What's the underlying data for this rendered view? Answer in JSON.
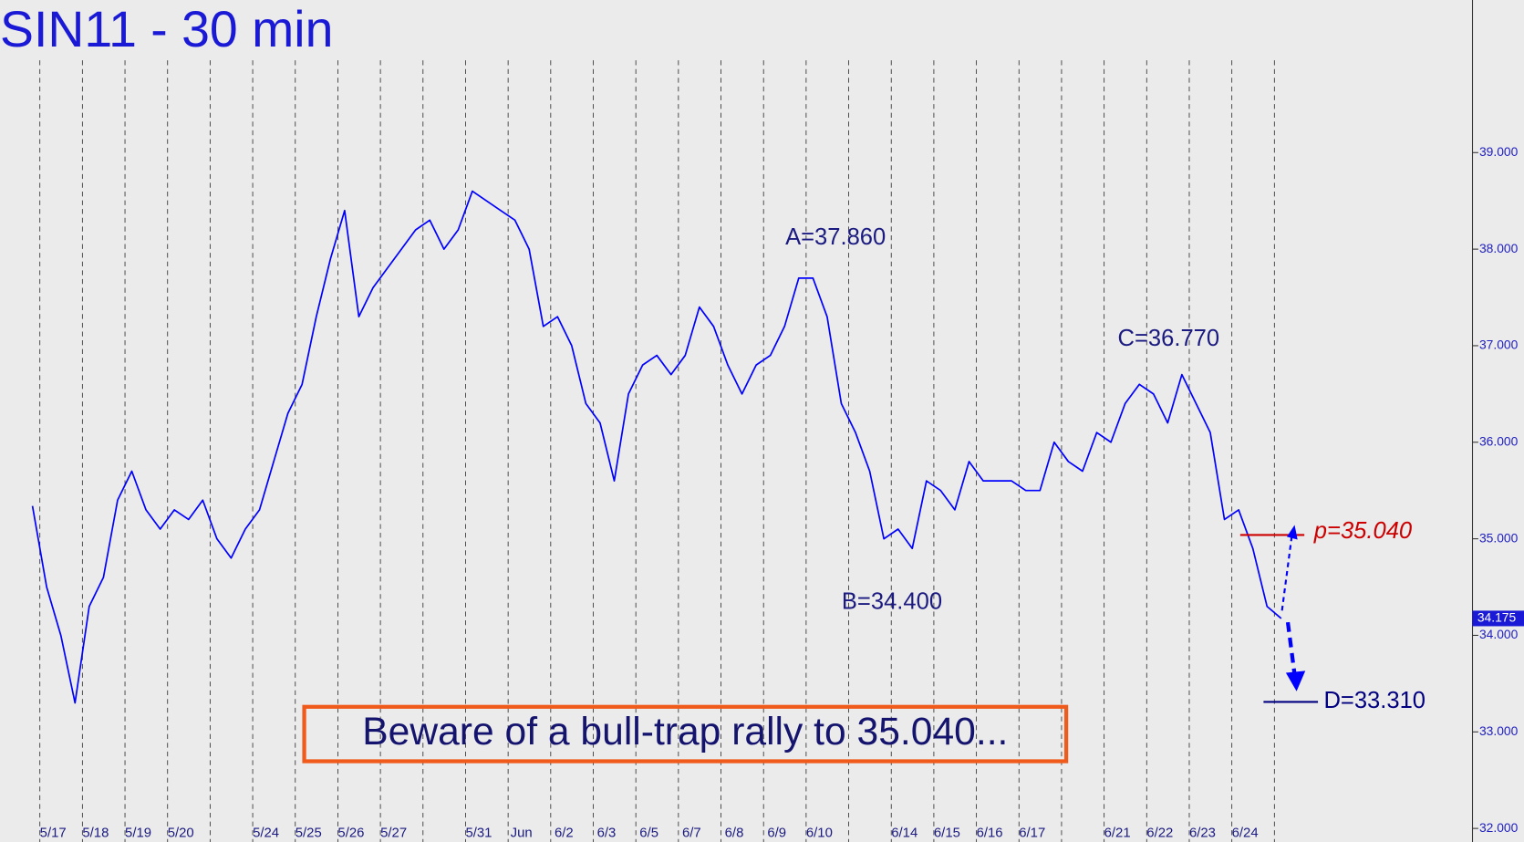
{
  "chart_data": {
    "type": "line",
    "title": "SIN11 - 30 min",
    "categories": [
      null,
      null,
      "5/17",
      null,
      null,
      "5/18",
      null,
      null,
      "5/19",
      null,
      null,
      "5/20",
      null,
      null,
      null,
      null,
      null,
      "5/24",
      null,
      null,
      "5/25",
      null,
      null,
      "5/26",
      null,
      null,
      "5/27",
      null,
      null,
      null,
      null,
      null,
      "5/31",
      null,
      null,
      "Jun",
      null,
      null,
      "6/2",
      null,
      null,
      "6/3",
      null,
      null,
      "6/5",
      null,
      null,
      "6/7",
      null,
      null,
      "6/8",
      null,
      null,
      "6/9",
      null,
      null,
      "6/10",
      null,
      null,
      null,
      null,
      null,
      "6/14",
      null,
      null,
      "6/15",
      null,
      null,
      "6/16",
      null,
      null,
      "6/17",
      null,
      null,
      null,
      null,
      null,
      "6/21",
      null,
      null,
      "6/22",
      null,
      null,
      "6/23",
      null,
      null,
      "6/24",
      null,
      null
    ],
    "series": [
      {
        "color": "#0000ff",
        "values": [
          35.34,
          34.5,
          34.0,
          33.3,
          34.3,
          34.6,
          35.4,
          35.7,
          35.3,
          35.1,
          35.3,
          35.2,
          35.4,
          35.0,
          34.8,
          35.1,
          35.3,
          35.8,
          36.3,
          36.6,
          37.3,
          37.9,
          38.4,
          37.3,
          37.6,
          37.8,
          38.0,
          38.2,
          38.3,
          38.0,
          38.2,
          38.6,
          38.5,
          38.4,
          38.3,
          38.0,
          37.2,
          37.3,
          37.0,
          36.4,
          36.2,
          35.6,
          36.5,
          36.8,
          36.9,
          36.7,
          36.9,
          37.4,
          37.2,
          36.8,
          36.5,
          36.8,
          36.9,
          37.2,
          37.7,
          37.7,
          37.3,
          36.4,
          36.1,
          35.7,
          35.0,
          35.1,
          34.9,
          35.6,
          35.5,
          35.3,
          35.8,
          35.6,
          35.6,
          35.6,
          35.5,
          35.5,
          36.0,
          35.8,
          35.7,
          36.1,
          36.0,
          36.4,
          36.6,
          36.5,
          36.2,
          36.7,
          36.4,
          36.1,
          35.2,
          35.3,
          34.9,
          34.3,
          34.175
        ]
      }
    ],
    "ylim": [
      31.86,
      40.58
    ],
    "yticks": [
      {
        "value": 32,
        "label": "32.000"
      },
      {
        "value": 33,
        "label": "33.000"
      },
      {
        "value": 34,
        "label": "34.000"
      },
      {
        "value": 35,
        "label": "35.000"
      },
      {
        "value": 36,
        "label": "36.000"
      },
      {
        "value": 37,
        "label": "37.000"
      },
      {
        "value": 38,
        "label": "38.000"
      },
      {
        "value": 39,
        "label": "39.000"
      }
    ],
    "annotations": [
      {
        "label": "A=37.860",
        "value": 37.86
      },
      {
        "label": "B=34.400",
        "value": 34.4
      },
      {
        "label": "C=36.770",
        "value": 36.77
      },
      {
        "label": "p=35.040",
        "value": 35.04,
        "color": "#cc0000"
      },
      {
        "label": "D=33.310",
        "value": 33.31,
        "color": "#000080"
      }
    ],
    "callout": "Beware of a bull-trap rally to 35.040..."
  }
}
